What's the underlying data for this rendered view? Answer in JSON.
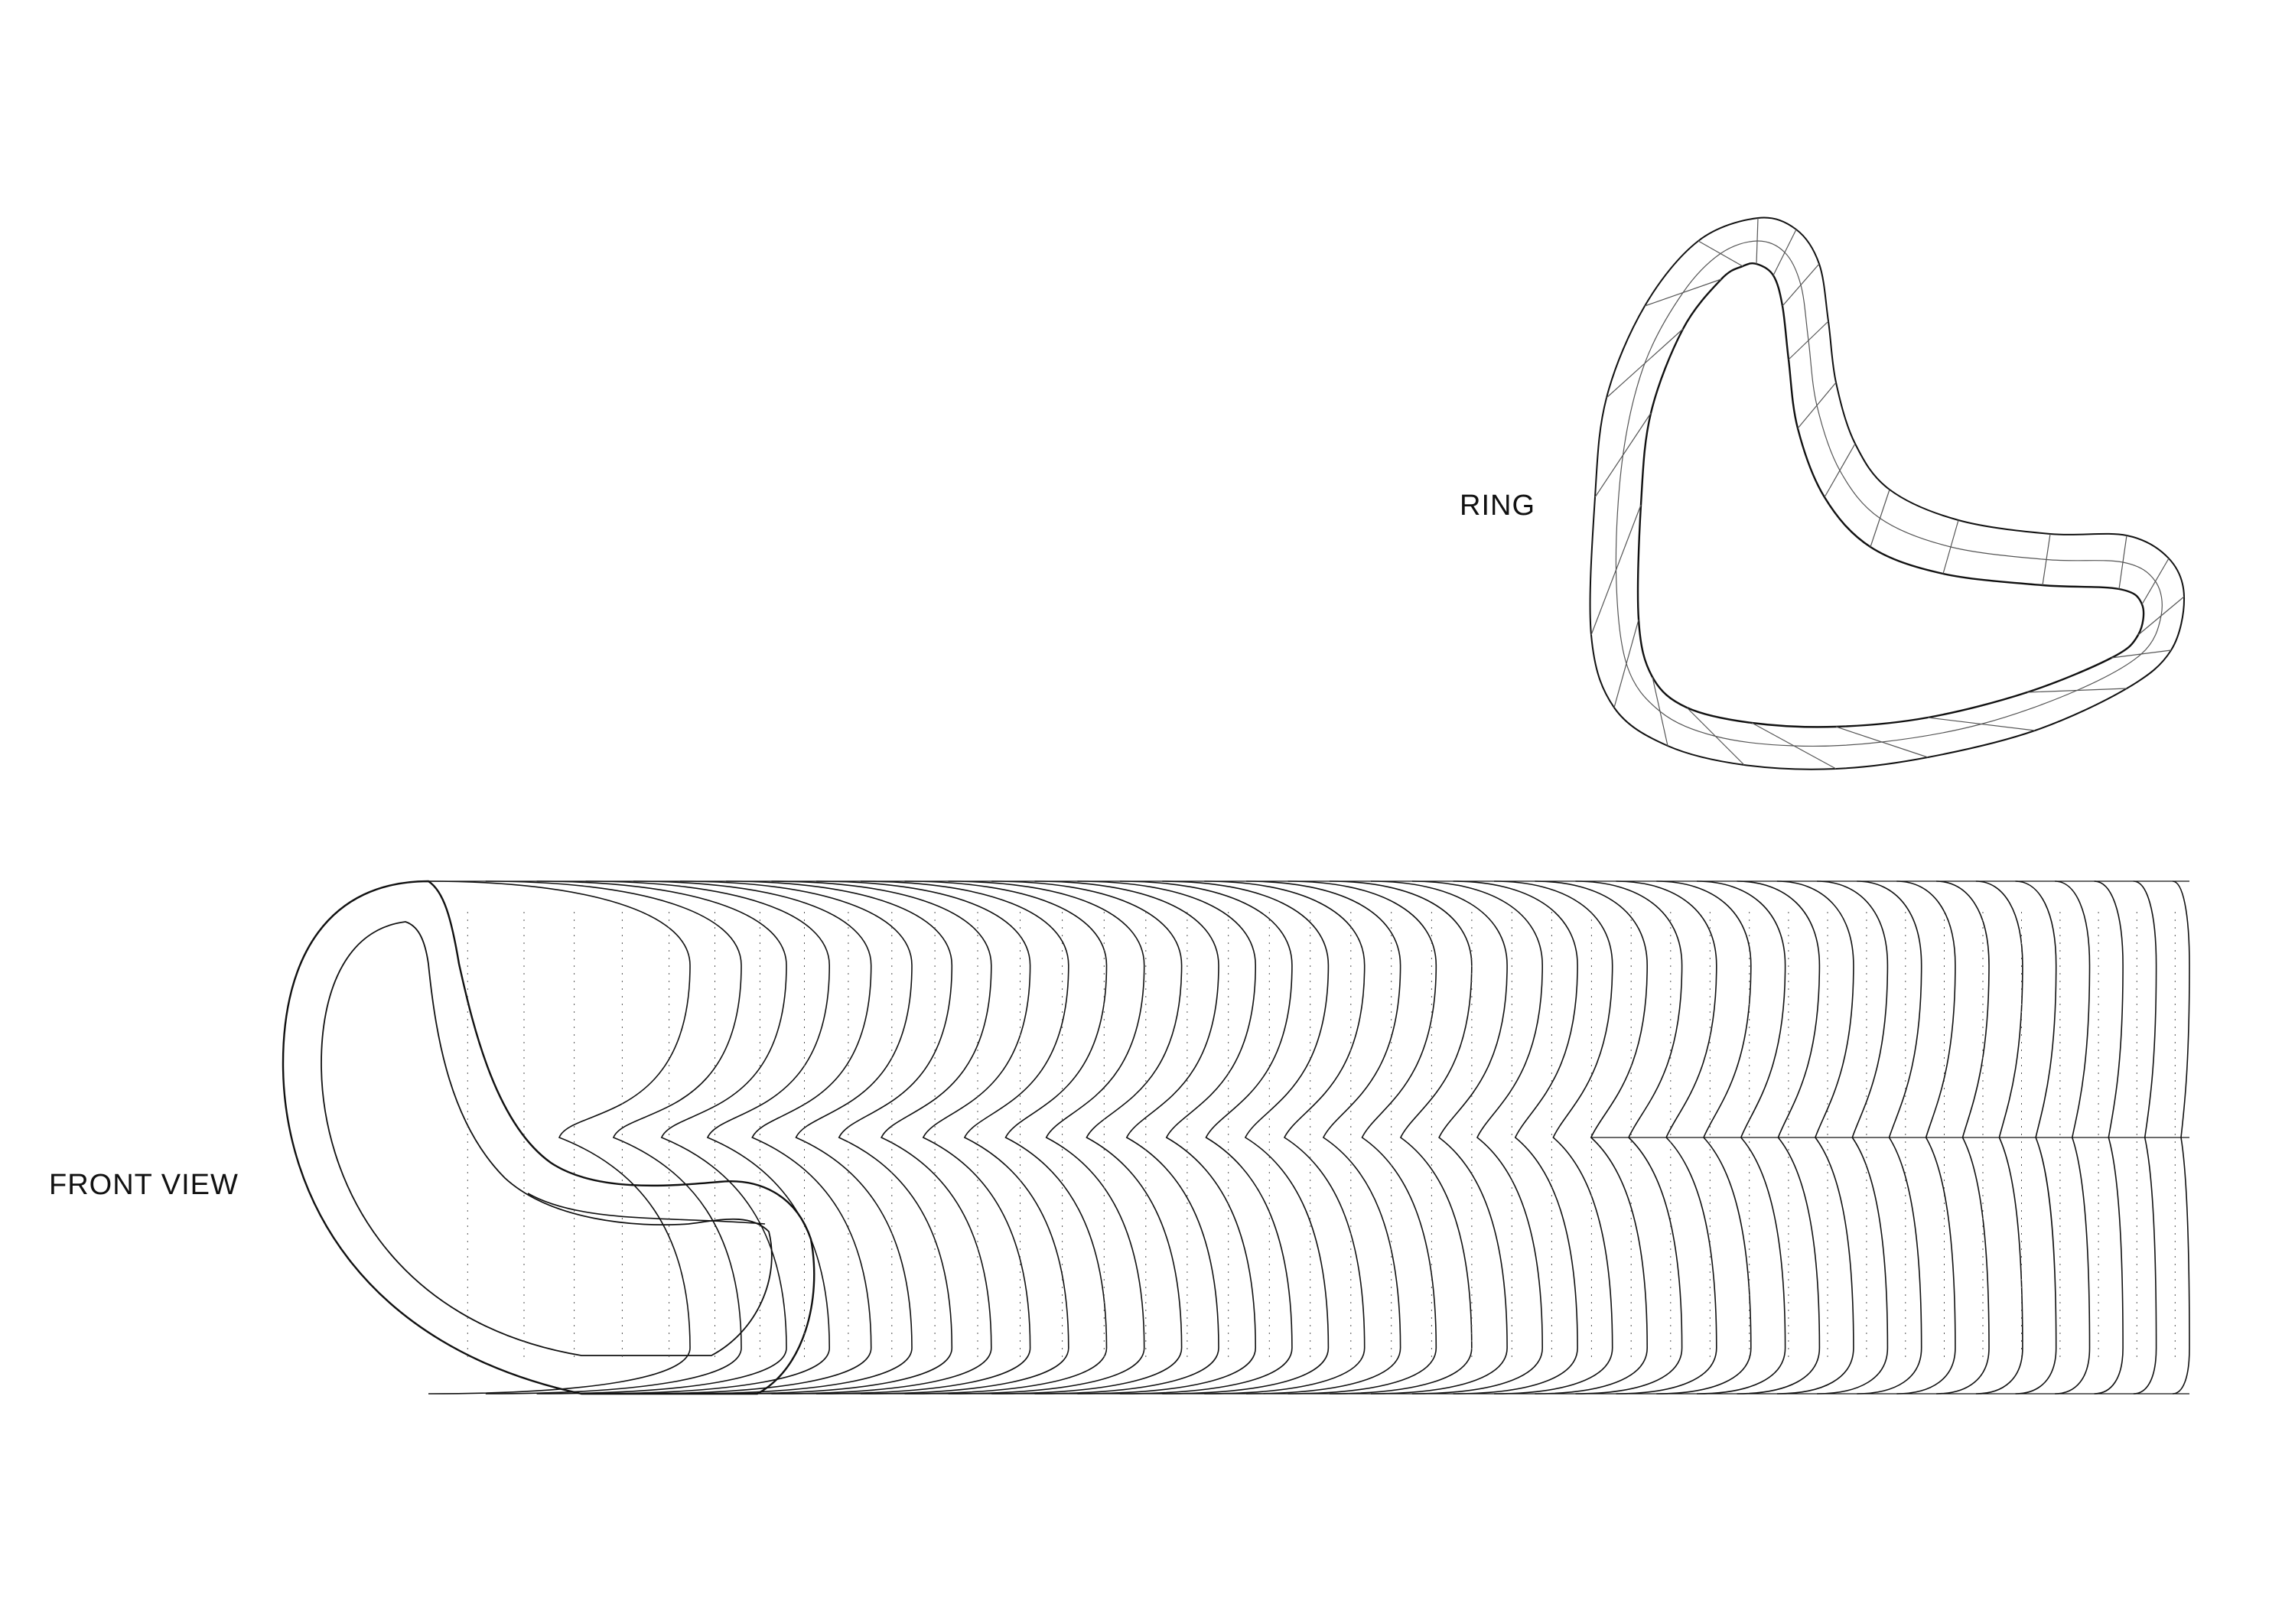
{
  "labels": {
    "ring": "RING",
    "front_view": "FRONT VIEW"
  },
  "colors": {
    "background": "#ffffff",
    "line": "#111111",
    "thin_line": "#555555"
  }
}
